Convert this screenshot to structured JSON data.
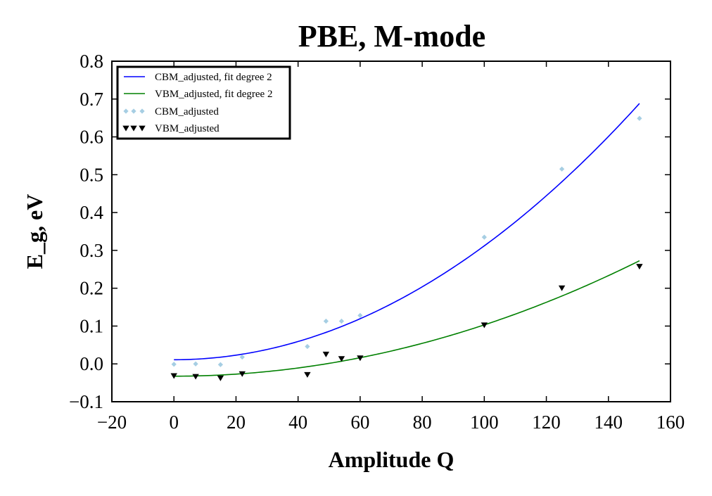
{
  "chart_data": {
    "type": "scatter",
    "title": "PBE, M-mode",
    "xlabel": "Amplitude Q",
    "ylabel": "E_g, eV",
    "xlim": [
      -20,
      160
    ],
    "ylim": [
      -0.1,
      0.8
    ],
    "xticks": [
      -20,
      0,
      20,
      40,
      60,
      80,
      100,
      120,
      140,
      160
    ],
    "yticks": [
      -0.1,
      0.0,
      0.1,
      0.2,
      0.3,
      0.4,
      0.5,
      0.6,
      0.7,
      0.8
    ],
    "xtick_labels": [
      "−20",
      "0",
      "20",
      "40",
      "60",
      "80",
      "100",
      "120",
      "140",
      "160"
    ],
    "ytick_labels": [
      "−0.1",
      "0.0",
      "0.1",
      "0.2",
      "0.3",
      "0.4",
      "0.5",
      "0.6",
      "0.7",
      "0.8"
    ],
    "grid": false,
    "legend_position": "top-left",
    "fit_lines": [
      {
        "name": "CBM_adjusted, fit degree 2",
        "color": "#0000ff",
        "coefficients": [
          0.011,
          0.0,
          3.01e-05
        ],
        "x_range": [
          0,
          150
        ]
      },
      {
        "name": "VBM_adjusted, fit degree 2",
        "color": "#008000",
        "coefficients": [
          -0.0325,
          0.0,
          1.356e-05
        ],
        "x_range": [
          0,
          150
        ]
      }
    ],
    "series": [
      {
        "name": "CBM_adjusted",
        "color": "#a6cee3",
        "marker": "diamond",
        "x": [
          0,
          7,
          15,
          22,
          43,
          49,
          54,
          60,
          100,
          125,
          150
        ],
        "y": [
          -0.001,
          0.0,
          -0.002,
          0.018,
          0.046,
          0.113,
          0.113,
          0.128,
          0.335,
          0.515,
          0.649
        ]
      },
      {
        "name": "VBM_adjusted",
        "color": "#000000",
        "marker": "triangle-down",
        "x": [
          0,
          7,
          15,
          22,
          43,
          49,
          54,
          60,
          100,
          125,
          150
        ],
        "y": [
          -0.031,
          -0.033,
          -0.037,
          -0.026,
          -0.028,
          0.026,
          0.014,
          0.016,
          0.103,
          0.201,
          0.258
        ]
      }
    ]
  }
}
